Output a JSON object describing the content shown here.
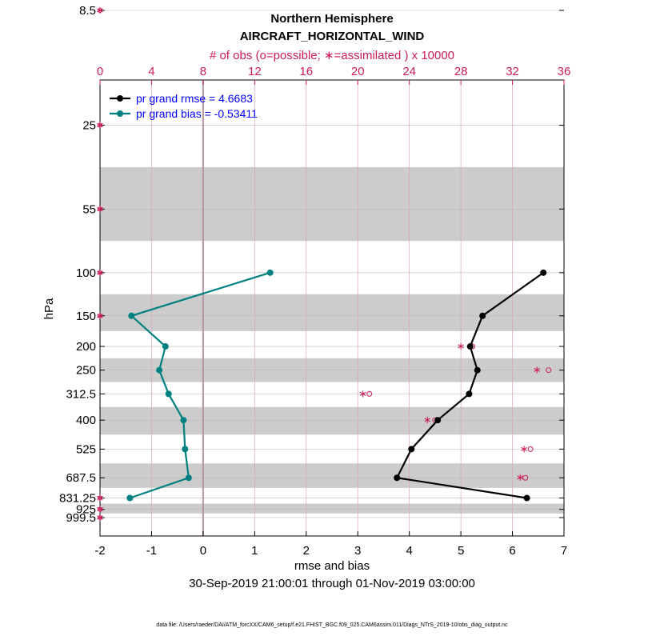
{
  "chart_data": {
    "type": "line",
    "title": "Northern Hemisphere",
    "subtitle": "AIRCRAFT_HORIZONTAL_WIND",
    "top_axis_label": "# of obs (o=possible; ∗=assimilated ) x 10000",
    "xlabel": "rmse and bias",
    "ylabel": "hPa",
    "date_range": "30-Sep-2019 21:00:01 through 01-Nov-2019 03:00:00",
    "footer": "data file: /Users/raeder/DAI/ATM_forcXX/CAM6_setup/f.e21.FHIST_BGC.f09_025.CAM6assim.011/Diags_NTrS_2019-10/obs_diag_output.nc",
    "xlim": [
      -2,
      7
    ],
    "xticks": [
      "-2",
      "-1",
      "0",
      "1",
      "2",
      "3",
      "4",
      "5",
      "6",
      "7"
    ],
    "top_xlim": [
      0,
      36
    ],
    "top_xticks": [
      "0",
      "4",
      "8",
      "12",
      "16",
      "20",
      "24",
      "28",
      "32",
      "36"
    ],
    "levels": [
      8.5,
      25,
      55,
      100,
      150,
      200,
      250,
      312.5,
      400,
      525,
      687.5,
      831.25,
      925,
      999.5
    ],
    "level_labels": [
      "8.5",
      "25",
      "55",
      "100",
      "150",
      "200",
      "250",
      "312.5",
      "400",
      "525",
      "687.5",
      "831.25",
      "925",
      "999.5"
    ],
    "series": [
      {
        "name": "pr grand rmse = 4.6683",
        "color": "#000000",
        "levels": [
          100,
          150,
          200,
          250,
          312.5,
          400,
          525,
          687.5,
          831.25
        ],
        "values": [
          6.6,
          5.42,
          5.18,
          5.32,
          5.16,
          4.55,
          4.04,
          3.76,
          6.28
        ]
      },
      {
        "name": "pr grand bias = -0.53411",
        "color": "#008080",
        "levels": [
          100,
          150,
          200,
          250,
          312.5,
          400,
          525,
          687.5,
          831.25
        ],
        "values": [
          1.3,
          -1.39,
          -0.73,
          -0.85,
          -0.67,
          -0.38,
          -0.35,
          -0.28,
          -1.42
        ]
      }
    ],
    "obs_counts": {
      "color": "#cc1a5a",
      "levels": [
        8.5,
        25,
        55,
        100,
        150,
        200,
        250,
        312.5,
        400,
        525,
        687.5,
        831.25,
        925,
        999.5
      ],
      "possible": [
        0,
        0,
        0,
        0,
        0,
        28.9,
        34.8,
        20.9,
        26.0,
        33.4,
        33.0,
        0,
        0,
        0
      ],
      "assimilated": [
        0,
        0,
        0,
        0,
        0,
        28.0,
        33.9,
        20.4,
        25.4,
        32.9,
        32.6,
        0,
        0,
        0
      ]
    }
  }
}
